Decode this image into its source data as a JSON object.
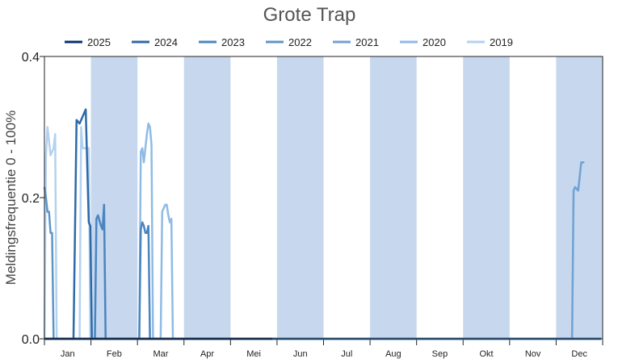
{
  "chart_data": {
    "type": "line",
    "title": "Grote Trap",
    "ylabel": "Meldingsfrequentie 0 - 100%",
    "xlabel": "",
    "ylim": [
      0,
      0.4
    ],
    "yticks": [
      "0.0",
      "0.2",
      "0.4"
    ],
    "months": [
      "Jan",
      "Feb",
      "Mar",
      "Apr",
      "Mei",
      "Jun",
      "Jul",
      "Aug",
      "Sep",
      "Okt",
      "Nov",
      "Dec"
    ],
    "shaded_months": [
      "Feb",
      "Apr",
      "Jun",
      "Aug",
      "Okt",
      "Dec"
    ],
    "shade_color": "#c6d7ee",
    "legend_position": "top",
    "x_unit": "day of year",
    "series": [
      {
        "name": "2025",
        "color": "#08306b",
        "points": [
          [
            1,
            0.0
          ],
          [
            6,
            0.0
          ],
          [
            10,
            0.0
          ],
          [
            120,
            0.0
          ],
          [
            150,
            0.0
          ]
        ]
      },
      {
        "name": "2024",
        "color": "#2c6aa8",
        "points": [
          [
            1,
            0.0
          ],
          [
            20,
            0.0
          ],
          [
            22,
            0.31
          ],
          [
            24,
            0.305
          ],
          [
            26,
            0.315
          ],
          [
            28,
            0.325
          ],
          [
            30,
            0.165
          ],
          [
            31,
            0.16
          ],
          [
            32,
            0.0
          ],
          [
            365,
            0.0
          ]
        ]
      },
      {
        "name": "2023",
        "color": "#4a85c0",
        "points": [
          [
            1,
            0.0
          ],
          [
            34,
            0.0
          ],
          [
            35,
            0.17
          ],
          [
            36,
            0.175
          ],
          [
            38,
            0.16
          ],
          [
            39,
            0.155
          ],
          [
            40,
            0.19
          ],
          [
            41,
            0.0
          ],
          [
            63,
            0.0
          ],
          [
            64,
            0.155
          ],
          [
            65,
            0.165
          ],
          [
            66,
            0.16
          ],
          [
            67,
            0.15
          ],
          [
            68,
            0.15
          ],
          [
            69,
            0.16
          ],
          [
            70,
            0.0
          ],
          [
            365,
            0.0
          ]
        ]
      },
      {
        "name": "2022",
        "color": "#5e96c9",
        "points": [
          [
            1,
            0.215
          ],
          [
            2,
            0.2
          ],
          [
            3,
            0.18
          ],
          [
            4,
            0.18
          ],
          [
            5,
            0.15
          ],
          [
            6,
            0.15
          ],
          [
            7,
            0.0
          ],
          [
            365,
            0.0
          ]
        ]
      },
      {
        "name": "2021",
        "color": "#6fa2d4",
        "points": [
          [
            1,
            0.0
          ],
          [
            346,
            0.0
          ],
          [
            347,
            0.21
          ],
          [
            348,
            0.215
          ],
          [
            350,
            0.21
          ],
          [
            352,
            0.25
          ],
          [
            354,
            0.25
          ]
        ]
      },
      {
        "name": "2020",
        "color": "#8ebbe5",
        "points": [
          [
            1,
            0.0
          ],
          [
            63,
            0.0
          ],
          [
            64,
            0.265
          ],
          [
            65,
            0.27
          ],
          [
            66,
            0.25
          ],
          [
            68,
            0.29
          ],
          [
            69,
            0.305
          ],
          [
            70,
            0.3
          ],
          [
            71,
            0.275
          ],
          [
            72,
            0.0
          ],
          [
            77,
            0.0
          ],
          [
            78,
            0.18
          ],
          [
            80,
            0.19
          ],
          [
            81,
            0.19
          ],
          [
            82,
            0.175
          ],
          [
            83,
            0.165
          ],
          [
            84,
            0.17
          ],
          [
            85,
            0.0
          ],
          [
            365,
            0.0
          ]
        ]
      },
      {
        "name": "2019",
        "color": "#b3d2ef",
        "points": [
          [
            1,
            0.0
          ],
          [
            2,
            0.26
          ],
          [
            3,
            0.3
          ],
          [
            4,
            0.28
          ],
          [
            5,
            0.26
          ],
          [
            7,
            0.27
          ],
          [
            8,
            0.29
          ],
          [
            9,
            0.0
          ],
          [
            24,
            0.0
          ],
          [
            25,
            0.3
          ],
          [
            26,
            0.27
          ],
          [
            28,
            0.27
          ],
          [
            30,
            0.27
          ],
          [
            31,
            0.0
          ],
          [
            365,
            0.0
          ]
        ]
      }
    ]
  }
}
